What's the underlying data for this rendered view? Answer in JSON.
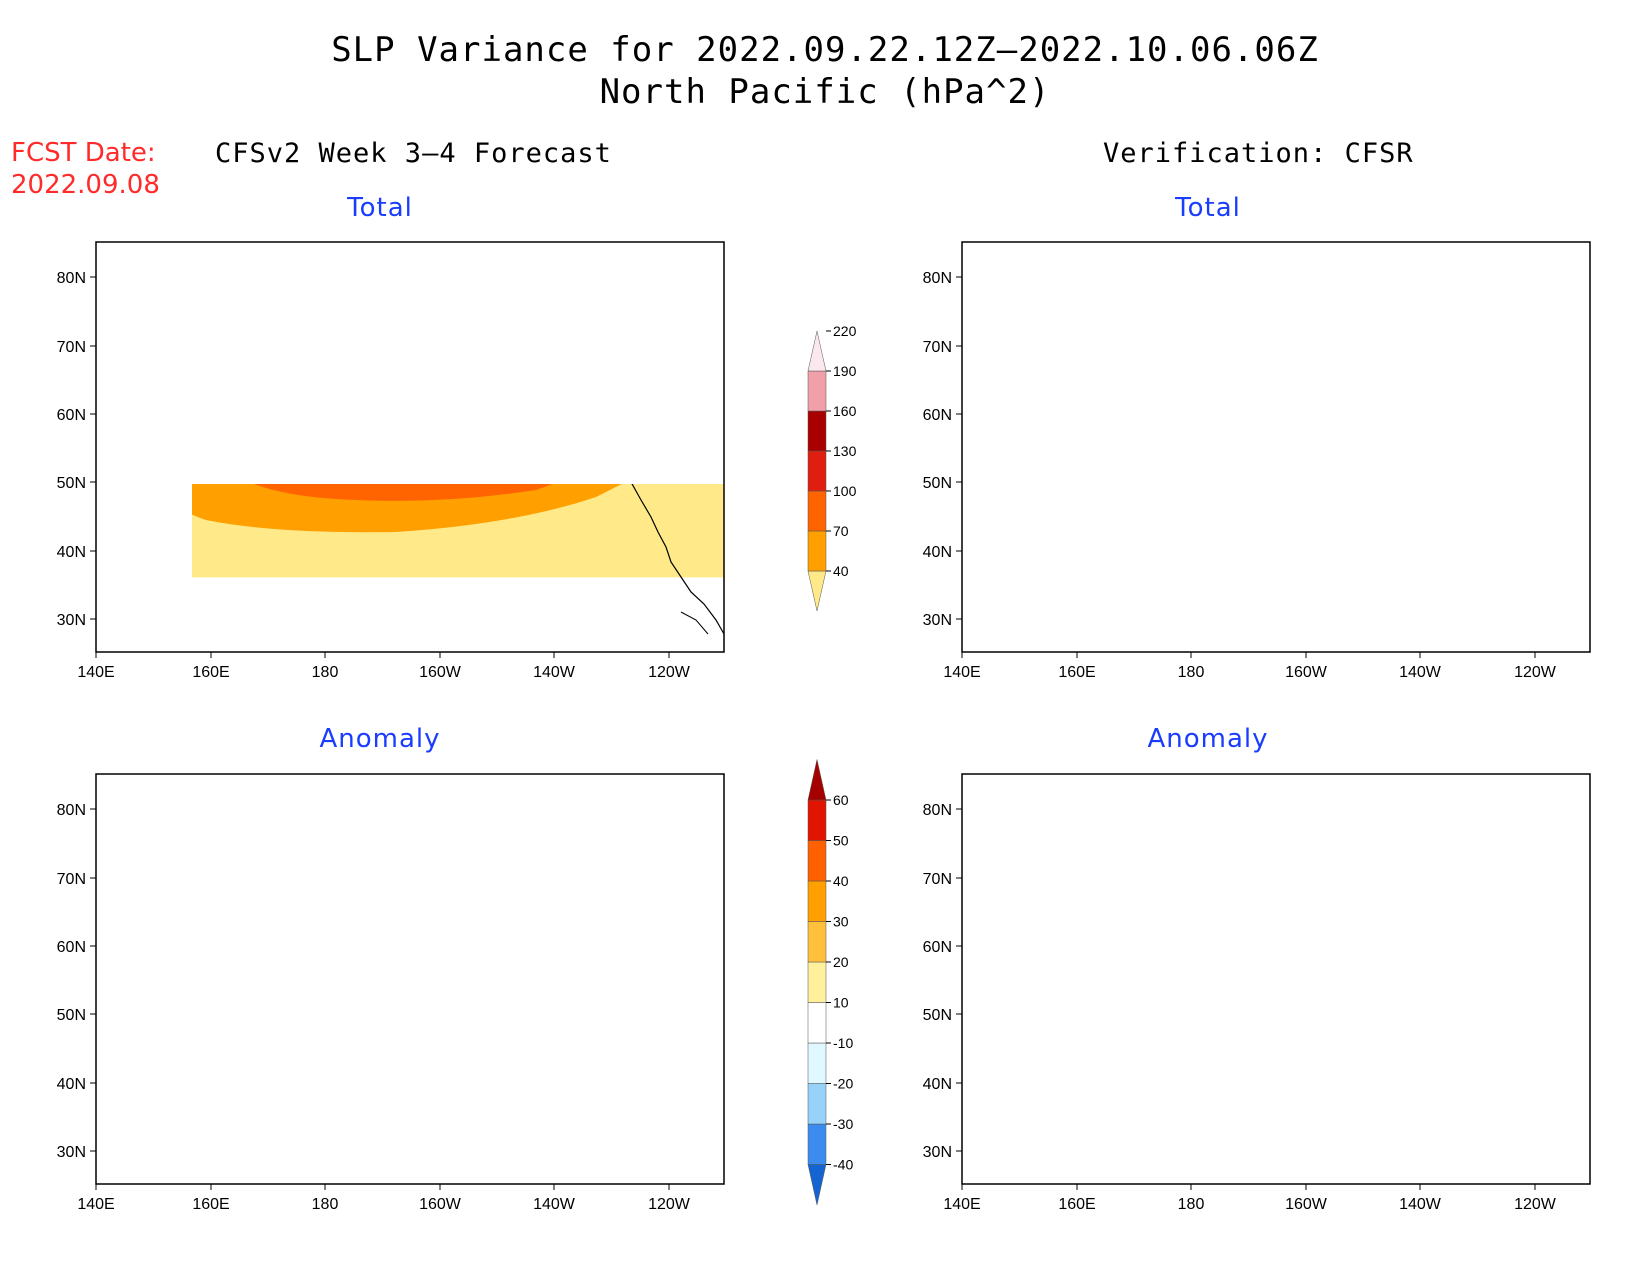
{
  "header": {
    "title_line1": "SLP Variance for 2022.09.22.12Z–2022.10.06.06Z",
    "title_line2": "North Pacific (hPa^2)",
    "fcst_line1": "FCST Date:",
    "fcst_line2": "2022.09.08",
    "left_column_title": "CFSv2 Week 3–4 Forecast",
    "right_column_title": "Verification: CFSR"
  },
  "panels": {
    "fc_total": {
      "title": "Total"
    },
    "ver_total": {
      "title": "Total"
    },
    "fc_anom": {
      "title": "Anomaly"
    },
    "ver_anom": {
      "title": "Anomaly"
    }
  },
  "axes": {
    "lat_labels": [
      "80N",
      "70N",
      "60N",
      "50N",
      "40N",
      "30N"
    ],
    "lon_labels": [
      "140E",
      "160E",
      "180",
      "160W",
      "140W",
      "120W"
    ]
  },
  "colorbars": {
    "total": {
      "levels": [
        "40",
        "70",
        "100",
        "130",
        "160",
        "190",
        "220"
      ],
      "colors": [
        "#ffe988",
        "#ffa000",
        "#ff6400",
        "#e01e10",
        "#a80000",
        "#f0a0a8",
        "#fbe8ee"
      ]
    },
    "anomaly": {
      "levels": [
        "-40",
        "-30",
        "-20",
        "-10",
        "10",
        "20",
        "30",
        "40",
        "50",
        "60"
      ],
      "colors": [
        "#1464d2",
        "#3c8cf0",
        "#96d2fa",
        "#e0f8ff",
        "#ffffff",
        "#fff09c",
        "#ffc03c",
        "#ffa000",
        "#ff6000",
        "#e01400",
        "#a50000"
      ]
    }
  },
  "colors": {
    "title_red": "#ff2a2a",
    "panel_title_blue": "#1a3cff"
  }
}
